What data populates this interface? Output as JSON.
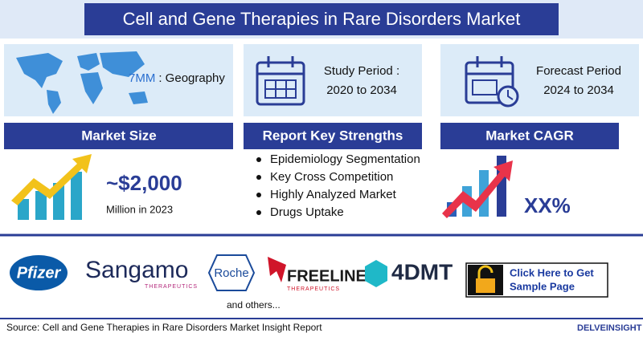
{
  "header": {
    "title": "Cell and Gene Therapies in Rare Disorders Market"
  },
  "geography": {
    "label": "7MM",
    "text": ": Geography"
  },
  "study_period": {
    "label": "Study Period :",
    "value": "2020 to 2034"
  },
  "forecast_period": {
    "label": "Forecast Period",
    "value": "2024 to 2034"
  },
  "market_size": {
    "heading": "Market Size",
    "value": "~$2,000",
    "unit": "Million in 2023"
  },
  "strengths": {
    "heading": "Report Key Strengths",
    "items": [
      "Epidemiology Segmentation",
      "Key Cross Competition",
      "Highly Analyzed Market",
      "Drugs Uptake"
    ]
  },
  "cagr": {
    "heading": "Market CAGR",
    "value": "XX%"
  },
  "companies": {
    "pfizer": "Pfizer",
    "sangamo": "Sangamo",
    "sangamo_sub": "THERAPEUTICS",
    "roche": "Roche",
    "freeline": "FREELINE",
    "freeline_sub": "THERAPEUTICS",
    "fourdmt": "4DMT",
    "others": "and others..."
  },
  "cta": {
    "line1": "Click Here to Get",
    "line2": "Sample Page"
  },
  "footer": {
    "source": "Source: Cell and Gene Therapies in Rare Disorders Market Insight Report",
    "brand": "DELVEINSIGHT"
  }
}
